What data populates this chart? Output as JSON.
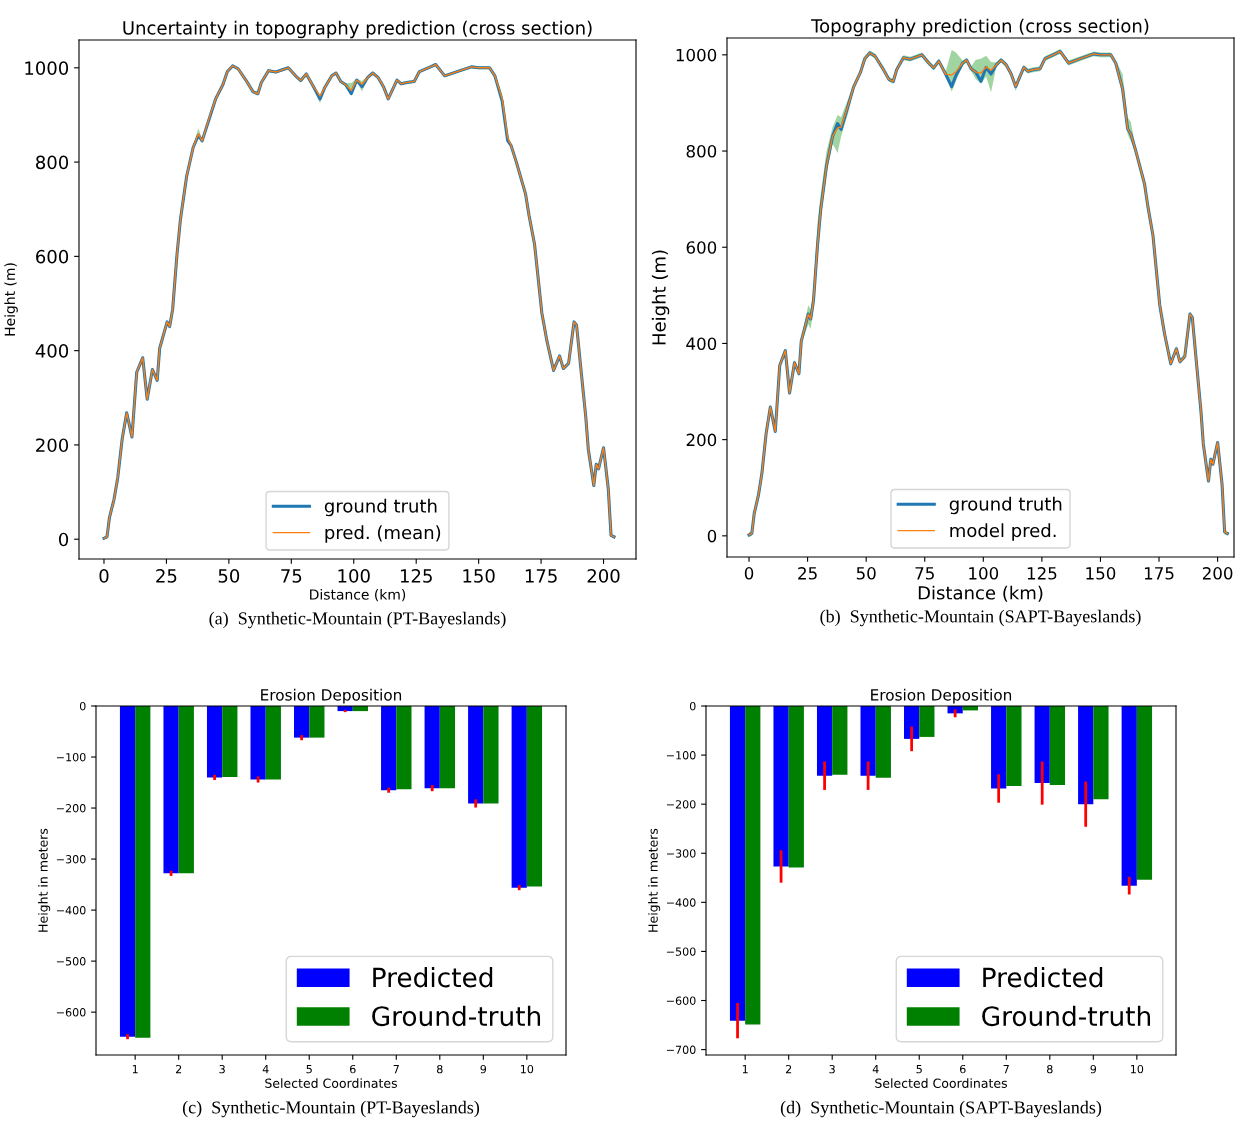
{
  "chart_data": [
    {
      "type": "line",
      "title": "Uncertainty in topography prediction (cross section)",
      "xlabel": "Distance (km)",
      "ylabel": "Height (m)",
      "x": [
        0,
        1.2,
        2.2,
        4,
        5.5,
        7.3,
        9.1,
        11.2,
        13.1,
        15.5,
        17.3,
        19.4,
        21.3,
        22.3,
        25.3,
        26.3,
        27.5,
        29.2,
        30.6,
        33.1,
        35.7,
        37.8,
        39.3,
        42.4,
        44.7,
        47.6,
        49.4,
        51.5,
        53.7,
        56.8,
        59.7,
        61.6,
        63,
        65.9,
        68.8,
        73.8,
        76.7,
        78.8,
        81,
        83.9,
        86.5,
        88.3,
        91.2,
        92.9,
        94.8,
        96.8,
        99,
        101.2,
        103.3,
        105.5,
        107.6,
        109.8,
        111.9,
        113.8,
        117.3,
        119,
        121.3,
        124.2,
        126.3,
        130.7,
        132.8,
        136.4,
        141.4,
        147.1,
        150,
        154.4,
        156.5,
        159.4,
        161.6,
        163,
        165.1,
        168.8,
        170.2,
        172.4,
        175.3,
        177.4,
        180,
        182.4,
        183.9,
        186,
        188.2,
        189.2,
        191,
        192.9,
        193.9,
        196.1,
        197.1,
        198,
        200,
        201.9,
        203,
        204.2
      ],
      "series": [
        {
          "name": "ground truth",
          "color": "#1f77b4",
          "values": [
            2,
            5,
            46,
            84,
            130,
            213,
            268,
            217,
            354,
            385,
            297,
            360,
            337,
            405,
            461,
            451,
            488,
            602,
            678,
            770,
            831,
            857,
            845,
            896,
            934,
            964,
            992,
            1004,
            998,
            974,
            949,
            945,
            969,
            994,
            991,
            1000,
            983,
            973,
            987,
            960,
            934,
            957,
            983,
            989,
            971,
            964,
            945,
            974,
            960,
            979,
            989,
            979,
            960,
            934,
            974,
            966,
            969,
            971,
            992,
            1002,
            1007,
            983,
            992,
            1002,
            1000,
            1000,
            983,
            930,
            846,
            835,
            800,
            732,
            686,
            625,
            480,
            419,
            358,
            389,
            362,
            373,
            461,
            454,
            358,
            259,
            191,
            114,
            159,
            149,
            194,
            107,
            8,
            5
          ]
        },
        {
          "name": "pred. (mean)",
          "color": "#ff7f0e",
          "values": [
            2,
            5,
            46,
            84,
            130,
            213,
            268,
            217,
            354,
            385,
            297,
            360,
            337,
            405,
            461,
            451,
            488,
            602,
            678,
            770,
            831,
            860,
            845,
            898,
            934,
            964,
            992,
            1004,
            998,
            974,
            949,
            945,
            969,
            994,
            991,
            1000,
            983,
            973,
            987,
            960,
            940,
            957,
            983,
            989,
            971,
            964,
            952,
            974,
            965,
            979,
            989,
            979,
            960,
            934,
            974,
            966,
            969,
            971,
            992,
            1002,
            1007,
            983,
            992,
            1002,
            1000,
            1000,
            983,
            935,
            852,
            835,
            800,
            732,
            686,
            625,
            480,
            419,
            358,
            389,
            362,
            373,
            461,
            454,
            358,
            259,
            191,
            114,
            159,
            149,
            194,
            107,
            8,
            5
          ],
          "lower": [
            -1,
            2,
            43,
            81,
            127,
            210,
            265,
            214,
            351,
            382,
            294,
            357,
            334,
            402,
            458,
            448,
            485,
            599,
            675,
            767,
            828,
            855,
            842,
            895,
            931,
            961,
            989,
            1001,
            995,
            971,
            946,
            942,
            966,
            991,
            988,
            997,
            980,
            970,
            984,
            957,
            925,
            954,
            980,
            986,
            968,
            961,
            945,
            971,
            950,
            976,
            986,
            976,
            957,
            931,
            971,
            963,
            966,
            968,
            989,
            999,
            1004,
            980,
            989,
            999,
            997,
            997,
            980,
            930,
            849,
            832,
            797,
            729,
            683,
            622,
            477,
            416,
            355,
            386,
            359,
            370,
            458,
            451,
            355,
            256,
            188,
            111,
            156,
            146,
            191,
            104,
            5,
            2
          ],
          "upper": [
            5,
            8,
            49,
            87,
            133,
            216,
            271,
            220,
            357,
            388,
            300,
            363,
            340,
            408,
            464,
            454,
            491,
            605,
            681,
            773,
            834,
            872,
            848,
            901,
            937,
            967,
            995,
            1007,
            1001,
            977,
            952,
            948,
            972,
            997,
            994,
            1003,
            986,
            976,
            990,
            963,
            943,
            960,
            986,
            992,
            974,
            967,
            968,
            977,
            972,
            982,
            992,
            982,
            963,
            937,
            977,
            969,
            972,
            974,
            995,
            1005,
            1010,
            986,
            995,
            1005,
            1003,
            1003,
            986,
            945,
            862,
            838,
            803,
            735,
            689,
            628,
            483,
            422,
            361,
            392,
            365,
            376,
            464,
            457,
            361,
            262,
            194,
            117,
            162,
            152,
            197,
            110,
            11,
            8
          ]
        }
      ],
      "xlim": [
        -10,
        213
      ],
      "ylim": [
        -42,
        1059
      ],
      "xticks": [
        0,
        25,
        50,
        75,
        100,
        125,
        150,
        175,
        200
      ],
      "yticks": [
        0,
        200,
        400,
        600,
        800,
        1000
      ],
      "grid": false,
      "legend": "bottom",
      "marker": "none",
      "line_style": "solid",
      "annotations": [
        "(a)  Synthetic-Mountain (PT-Bayeslands)"
      ]
    },
    {
      "type": "line",
      "title": "Topography prediction (cross section)",
      "xlabel": "Distance (km)",
      "ylabel": "Height (m)",
      "x": [
        0,
        1.2,
        2.2,
        4,
        5.5,
        7.3,
        9.1,
        11.2,
        13.1,
        15.5,
        17.3,
        19.4,
        21.3,
        22.3,
        25.3,
        26.3,
        27.5,
        29.2,
        30.6,
        33.1,
        35.7,
        37.8,
        39.3,
        42.4,
        44.7,
        47.6,
        49.4,
        51.5,
        53.7,
        56.8,
        59.7,
        61.6,
        63,
        65.9,
        68.8,
        73.8,
        76.7,
        78.8,
        81,
        83.9,
        86.5,
        88.3,
        91.2,
        92.9,
        94.8,
        96.8,
        99,
        101.2,
        103.3,
        105.5,
        107.6,
        109.8,
        111.9,
        113.8,
        117.3,
        119,
        121.3,
        124.2,
        126.3,
        130.7,
        132.8,
        136.4,
        141.4,
        147.1,
        150,
        154.4,
        156.5,
        159.4,
        161.6,
        163,
        165.1,
        168.8,
        170.2,
        172.4,
        175.3,
        177.4,
        180,
        182.4,
        183.9,
        186,
        188.2,
        189.2,
        191,
        192.9,
        193.9,
        196.1,
        197.1,
        198,
        200,
        201.9,
        203,
        204.2
      ],
      "series": [
        {
          "name": "ground truth",
          "color": "#1f77b4",
          "values": [
            2,
            5,
            46,
            84,
            130,
            213,
            268,
            217,
            354,
            385,
            297,
            360,
            337,
            405,
            461,
            451,
            488,
            602,
            678,
            770,
            831,
            857,
            845,
            896,
            934,
            964,
            992,
            1004,
            998,
            974,
            949,
            945,
            969,
            994,
            991,
            1000,
            983,
            973,
            987,
            960,
            934,
            957,
            983,
            989,
            971,
            964,
            945,
            974,
            960,
            979,
            989,
            979,
            960,
            934,
            974,
            966,
            969,
            971,
            992,
            1002,
            1007,
            983,
            992,
            1002,
            1000,
            1000,
            983,
            930,
            846,
            835,
            800,
            732,
            686,
            625,
            480,
            419,
            358,
            389,
            362,
            373,
            461,
            454,
            358,
            259,
            191,
            114,
            159,
            149,
            194,
            107,
            8,
            5
          ]
        },
        {
          "name": "model pred.",
          "color": "#ff7f0e",
          "values": [
            2,
            5,
            46,
            84,
            130,
            213,
            268,
            217,
            354,
            385,
            297,
            360,
            337,
            405,
            461,
            451,
            488,
            602,
            678,
            770,
            831,
            848,
            850,
            896,
            934,
            964,
            992,
            1004,
            998,
            974,
            949,
            945,
            969,
            994,
            991,
            1000,
            983,
            973,
            987,
            960,
            958,
            965,
            983,
            989,
            971,
            964,
            962,
            975,
            968,
            979,
            989,
            979,
            960,
            934,
            974,
            966,
            969,
            971,
            992,
            1002,
            1007,
            983,
            992,
            1002,
            1000,
            1000,
            983,
            930,
            846,
            835,
            800,
            732,
            686,
            625,
            480,
            419,
            358,
            389,
            362,
            373,
            461,
            454,
            358,
            259,
            191,
            114,
            159,
            149,
            194,
            107,
            8,
            5
          ],
          "lower": [
            -3,
            0,
            41,
            79,
            125,
            208,
            263,
            212,
            349,
            380,
            292,
            355,
            332,
            400,
            440,
            430,
            470,
            590,
            660,
            755,
            815,
            796,
            830,
            880,
            929,
            959,
            987,
            999,
            993,
            969,
            944,
            940,
            964,
            989,
            986,
            995,
            978,
            968,
            982,
            955,
            924,
            945,
            978,
            984,
            966,
            950,
            940,
            955,
            922,
            974,
            984,
            974,
            955,
            925,
            969,
            961,
            964,
            966,
            987,
            997,
            1002,
            978,
            987,
            997,
            995,
            995,
            978,
            920,
            835,
            820,
            795,
            727,
            681,
            620,
            475,
            414,
            353,
            384,
            357,
            368,
            456,
            449,
            353,
            254,
            186,
            109,
            154,
            144,
            189,
            102,
            3,
            0
          ],
          "upper": [
            7,
            10,
            51,
            89,
            135,
            218,
            273,
            222,
            359,
            390,
            302,
            365,
            342,
            410,
            480,
            470,
            510,
            650,
            710,
            800,
            850,
            875,
            870,
            910,
            939,
            969,
            997,
            1009,
            1003,
            979,
            954,
            950,
            974,
            999,
            996,
            1005,
            988,
            978,
            992,
            965,
            1010,
            1005,
            988,
            994,
            976,
            990,
            992,
            998,
            985,
            984,
            994,
            984,
            965,
            939,
            979,
            971,
            974,
            976,
            997,
            1007,
            1012,
            988,
            997,
            1007,
            1005,
            1005,
            988,
            960,
            870,
            860,
            805,
            737,
            691,
            630,
            485,
            424,
            363,
            394,
            367,
            378,
            466,
            459,
            363,
            264,
            196,
            119,
            164,
            154,
            199,
            112,
            13,
            10
          ]
        }
      ],
      "xlim": [
        -9.4,
        207
      ],
      "ylim": [
        -44,
        1035
      ],
      "xticks": [
        0,
        25,
        50,
        75,
        100,
        125,
        150,
        175,
        200
      ],
      "yticks": [
        0,
        200,
        400,
        600,
        800,
        1000
      ],
      "grid": false,
      "legend": "bottom",
      "marker": "none",
      "line_style": "solid",
      "annotations": [
        "(b)  Synthetic-Mountain (SAPT-Bayeslands)"
      ]
    },
    {
      "type": "bar",
      "title": "Erosion Deposition",
      "xlabel": "Selected Coordinates",
      "ylabel": "Height in meters",
      "categories": [
        "1",
        "2",
        "3",
        "4",
        "5",
        "6",
        "7",
        "8",
        "9",
        "10"
      ],
      "series": [
        {
          "name": "Predicted",
          "color": "#0000ff",
          "values": [
            -648,
            -328,
            -140,
            -144,
            -62,
            -10,
            -165,
            -161,
            -191,
            -356
          ],
          "errors": [
            5,
            5,
            5,
            6,
            5,
            2,
            5,
            6,
            8,
            5
          ]
        },
        {
          "name": "Ground-truth",
          "color": "#008000",
          "values": [
            -650,
            -328,
            -139,
            -144,
            -62,
            -10,
            -163,
            -161,
            -191,
            -354
          ]
        }
      ],
      "ylim": [
        -684,
        0
      ],
      "yticks": [
        {
          "value": 0,
          "label": "0"
        },
        {
          "value": -100,
          "label": "−100"
        },
        {
          "value": -200,
          "label": "−200"
        },
        {
          "value": -300,
          "label": "−300"
        },
        {
          "value": -400,
          "label": "−400"
        },
        {
          "value": -500,
          "label": "−500"
        },
        {
          "value": -600,
          "label": "−600"
        }
      ],
      "grid": false,
      "legend": "bottom right",
      "annotations": [
        "(c)  Synthetic-Mountain (PT-Bayeslands)"
      ]
    },
    {
      "type": "bar",
      "title": "Erosion Deposition",
      "xlabel": "Selected Coordinates",
      "ylabel": "Height in meters",
      "categories": [
        "1",
        "2",
        "3",
        "4",
        "5",
        "6",
        "7",
        "8",
        "9",
        "10"
      ],
      "series": [
        {
          "name": "Predicted",
          "color": "#0000ff",
          "values": [
            -641,
            -327,
            -142,
            -142,
            -67,
            -15,
            -168,
            -157,
            -200,
            -366
          ],
          "errors": [
            36,
            33,
            29,
            29,
            25,
            8,
            29,
            44,
            46,
            18
          ]
        },
        {
          "name": "Ground-truth",
          "color": "#008000",
          "values": [
            -649,
            -329,
            -140,
            -146,
            -63,
            -9,
            -163,
            -161,
            -190,
            -354
          ]
        }
      ],
      "ylim": [
        -711,
        0
      ],
      "yticks": [
        {
          "value": 0,
          "label": "0"
        },
        {
          "value": -100,
          "label": "−100"
        },
        {
          "value": -200,
          "label": "−200"
        },
        {
          "value": -300,
          "label": "−300"
        },
        {
          "value": -400,
          "label": "−400"
        },
        {
          "value": -500,
          "label": "−500"
        },
        {
          "value": -600,
          "label": "−600"
        },
        {
          "value": -700,
          "label": "−700"
        }
      ],
      "grid": false,
      "legend": "bottom right",
      "annotations": [
        "(d)  Synthetic-Mountain (SAPT-Bayeslands)"
      ]
    }
  ]
}
